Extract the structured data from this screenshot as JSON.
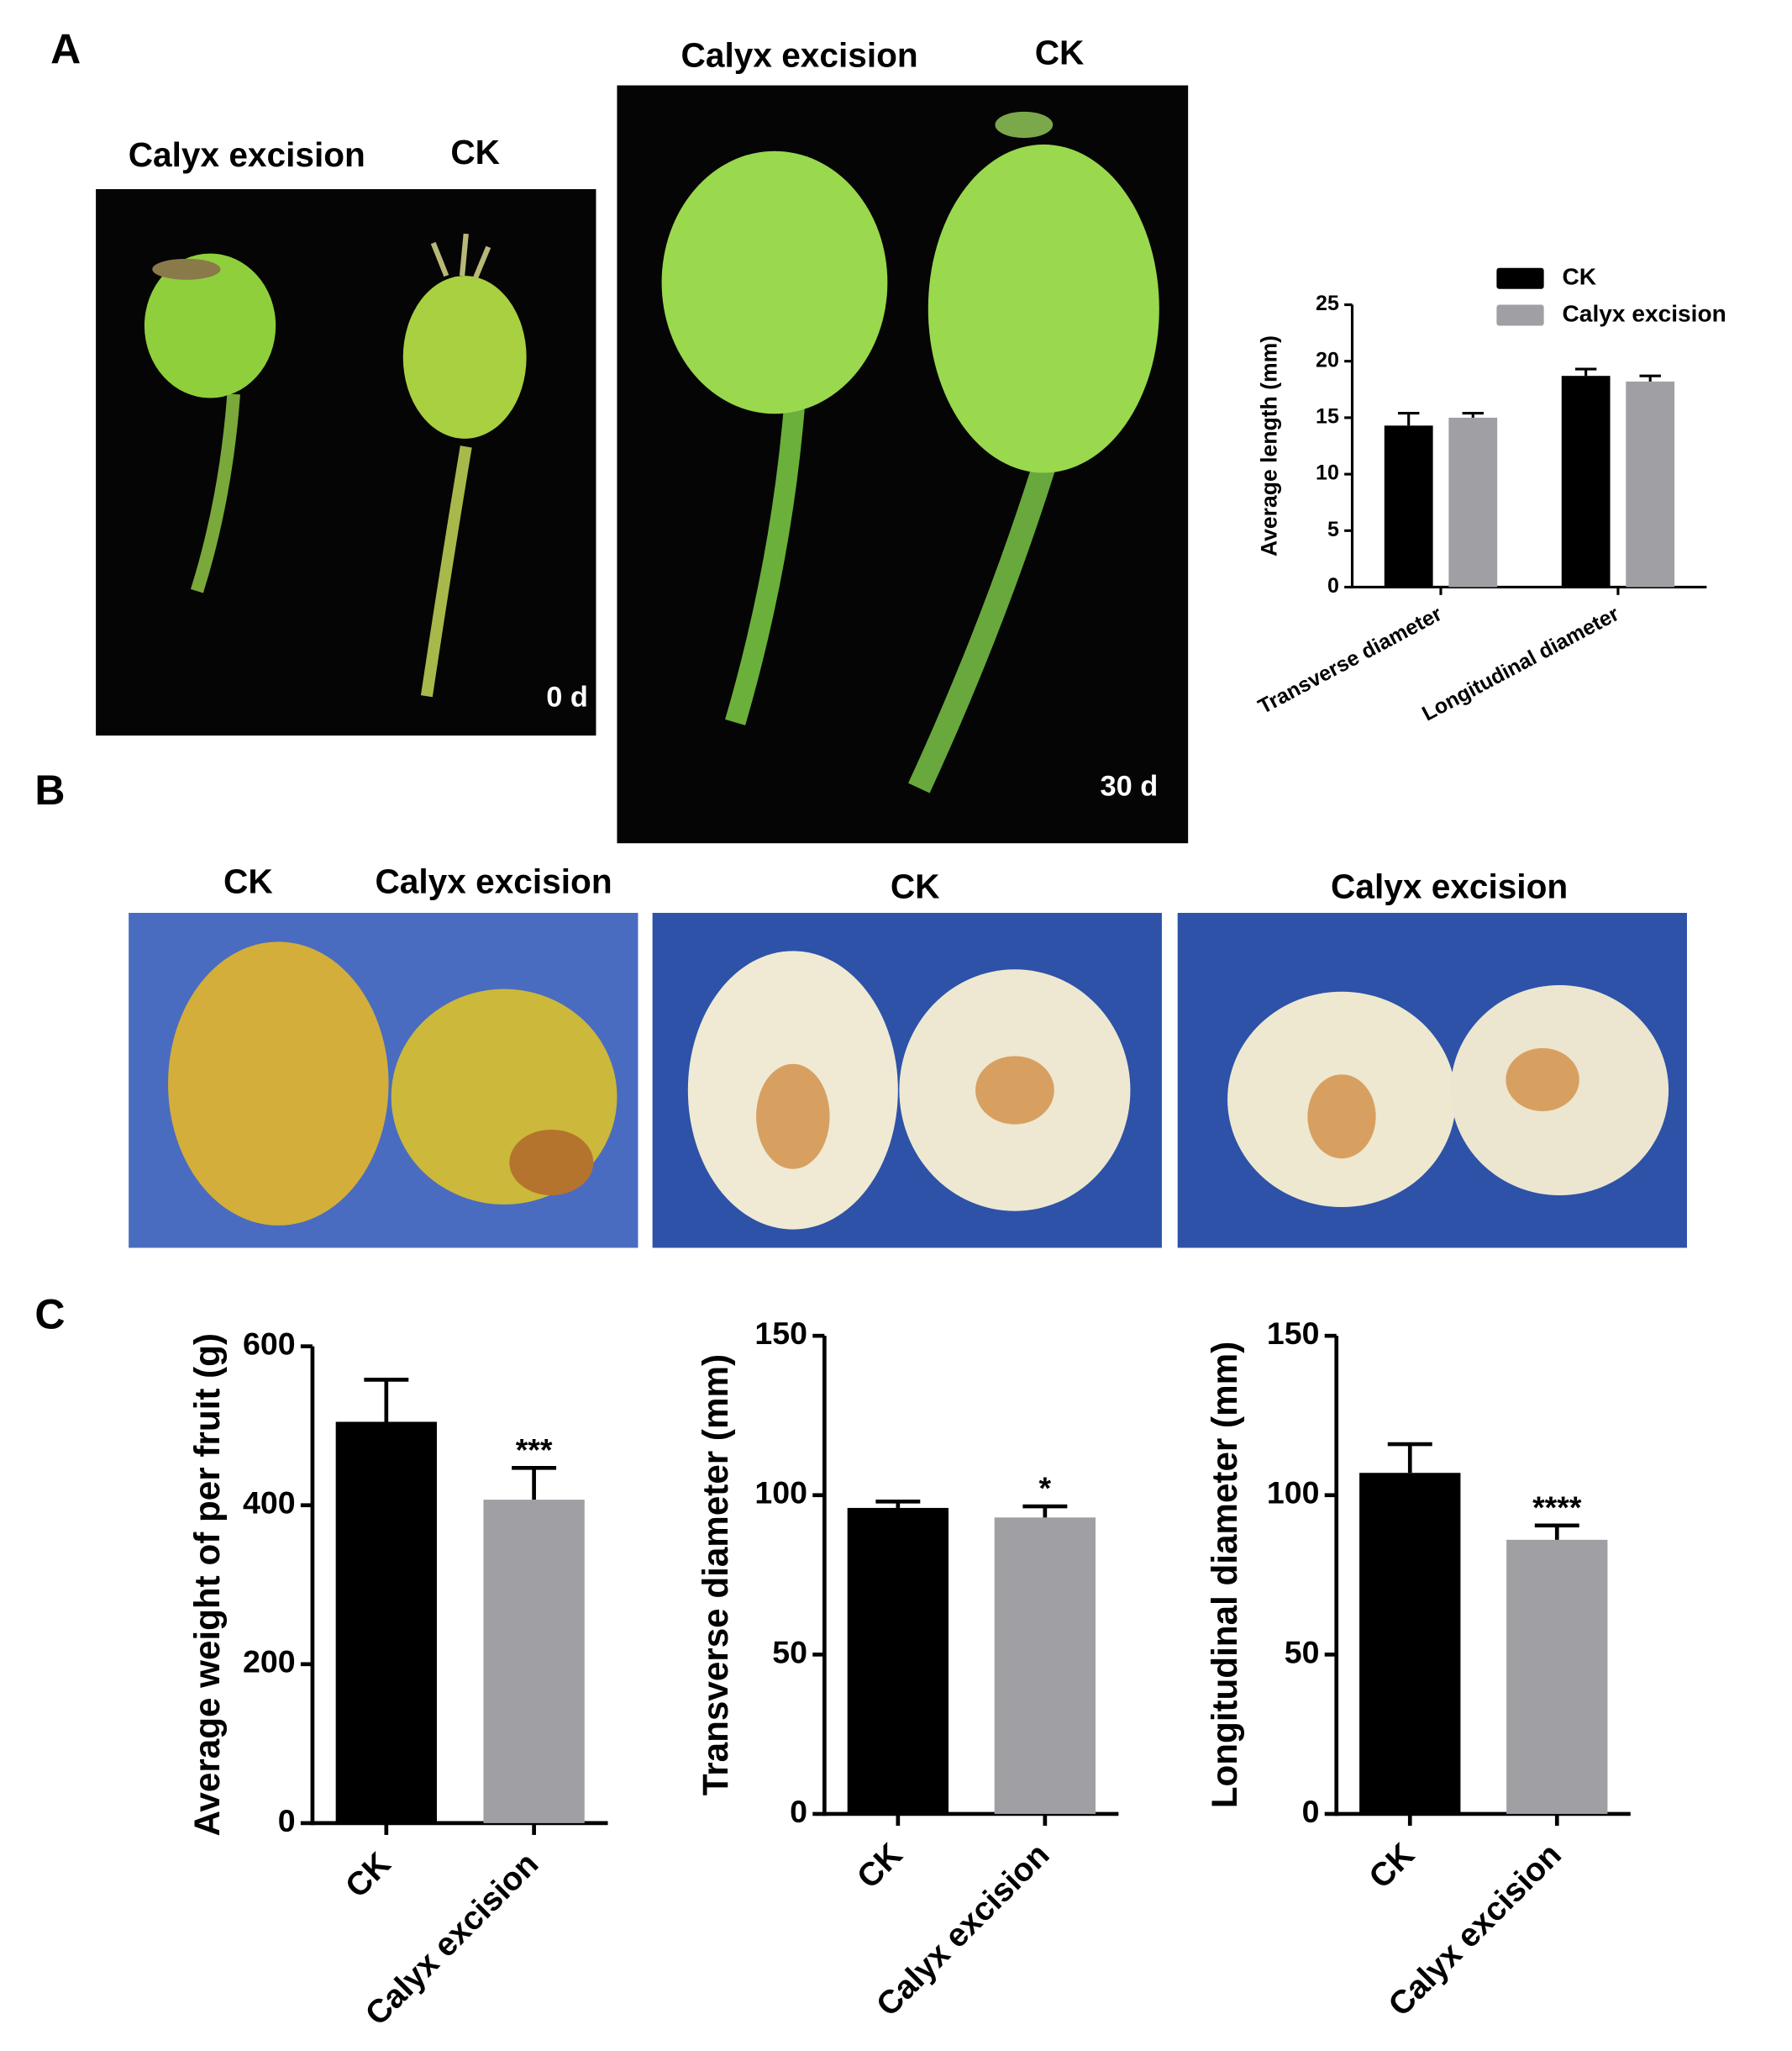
{
  "panel_labels": [
    "A",
    "B",
    "C"
  ],
  "photos": [
    {
      "captions": [
        "Calyx excision",
        "CK"
      ],
      "day": "0 d"
    },
    {
      "captions": [
        "Calyx excision",
        "CK"
      ],
      "day": "30 d"
    },
    {
      "captions": [
        "CK",
        "Calyx excision"
      ]
    },
    {
      "captions": [
        "CK"
      ]
    },
    {
      "captions": [
        "Calyx excision"
      ]
    }
  ],
  "chart_data": [
    {
      "type": "bar",
      "ylabel": "Average length (mm)",
      "categories": [
        "Transverse diameter",
        "Longitudinal diameter"
      ],
      "series": [
        {
          "name": "CK",
          "color": "#000000",
          "values": [
            14.3,
            18.7
          ],
          "errors": [
            1.1,
            0.6
          ]
        },
        {
          "name": "Calyx excision",
          "color": "#a0a0a4",
          "values": [
            15.0,
            18.2
          ],
          "errors": [
            0.4,
            0.5
          ]
        }
      ],
      "ylim": [
        0,
        25
      ],
      "yticks": [
        0,
        5,
        10,
        15,
        20,
        25
      ],
      "legend": "top-right"
    },
    {
      "type": "bar",
      "ylabel": "Average weight of per fruit (g)",
      "categories": [
        "CK",
        "Calyx excision"
      ],
      "values": [
        505,
        407
      ],
      "errors": [
        53,
        40
      ],
      "colors": [
        "#000000",
        "#a0a0a4"
      ],
      "ylim": [
        0,
        600
      ],
      "yticks": [
        0,
        200,
        400,
        600
      ],
      "annotations": [
        {
          "index": 1,
          "text": "***"
        }
      ]
    },
    {
      "type": "bar",
      "ylabel": "Transverse diameter (mm)",
      "categories": [
        "CK",
        "Calyx excision"
      ],
      "values": [
        96,
        93
      ],
      "errors": [
        2,
        3.5
      ],
      "colors": [
        "#000000",
        "#a0a0a4"
      ],
      "ylim": [
        0,
        150
      ],
      "yticks": [
        0,
        50,
        100,
        150
      ],
      "annotations": [
        {
          "index": 1,
          "text": "*"
        }
      ]
    },
    {
      "type": "bar",
      "ylabel": "Longitudinal diameter (mm)",
      "categories": [
        "CK",
        "Calyx excision"
      ],
      "values": [
        107,
        86
      ],
      "errors": [
        9,
        4.5
      ],
      "colors": [
        "#000000",
        "#a0a0a4"
      ],
      "ylim": [
        0,
        150
      ],
      "yticks": [
        0,
        50,
        100,
        150
      ],
      "annotations": [
        {
          "index": 1,
          "text": "****"
        }
      ]
    }
  ]
}
